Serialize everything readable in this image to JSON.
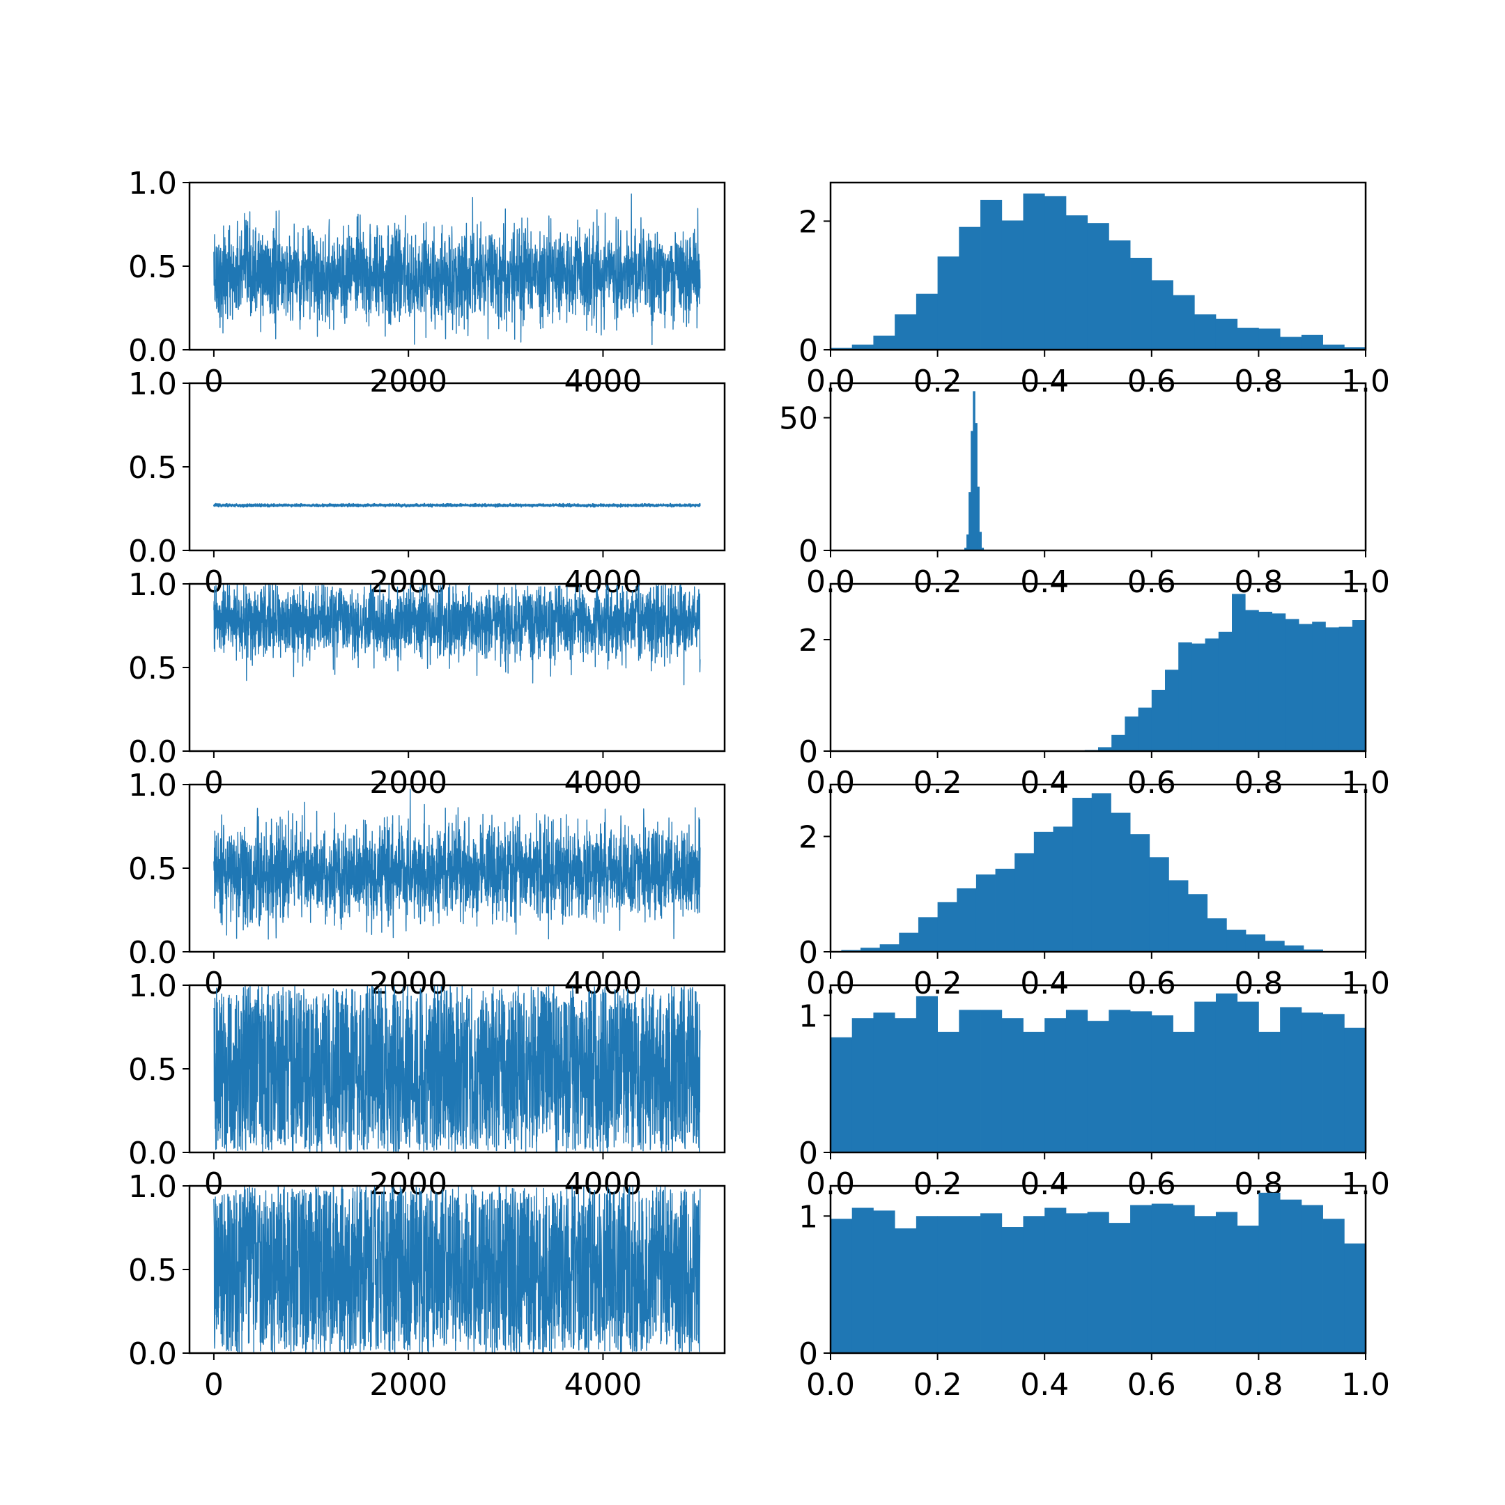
{
  "chart_data": [
    {
      "type": "line",
      "panel": "trace-1",
      "x_range": [
        0,
        5000
      ],
      "xlim": [
        -250,
        5250
      ],
      "ylim": [
        0,
        1
      ],
      "mean": 0.45,
      "spread": 0.14,
      "min": 0.03,
      "max": 1.0,
      "xticks": [
        0,
        2000,
        4000
      ],
      "xtick_labels": [
        "0",
        "2000",
        "4000"
      ],
      "yticks": [
        0,
        0.5,
        1.0
      ],
      "ytick_labels": [
        "0.0",
        "0.5",
        "1.0"
      ],
      "color": "#1f77b4"
    },
    {
      "type": "bar",
      "panel": "hist-1",
      "xlim": [
        0,
        1
      ],
      "ylim": [
        0,
        2.6
      ],
      "bin_width": 0.04,
      "values": [
        0.03,
        0.08,
        0.22,
        0.55,
        0.87,
        1.45,
        1.91,
        2.33,
        2.01,
        2.43,
        2.39,
        2.09,
        1.97,
        1.7,
        1.43,
        1.08,
        0.85,
        0.55,
        0.48,
        0.34,
        0.33,
        0.2,
        0.23,
        0.08,
        0.04
      ],
      "xticks": [
        0,
        0.2,
        0.4,
        0.6,
        0.8,
        1.0
      ],
      "xtick_labels": [
        "0.0",
        "0.2",
        "0.4",
        "0.6",
        "0.8",
        "1.0"
      ],
      "yticks": [
        0,
        2
      ],
      "ytick_labels": [
        "0",
        "2"
      ],
      "color": "#1f77b4"
    },
    {
      "type": "line",
      "panel": "trace-2",
      "x_range": [
        0,
        5000
      ],
      "xlim": [
        -250,
        5250
      ],
      "ylim": [
        0,
        1
      ],
      "mean": 0.27,
      "spread": 0.004,
      "min": 0.26,
      "max": 0.28,
      "xticks": [
        0,
        2000,
        4000
      ],
      "xtick_labels": [
        "0",
        "2000",
        "4000"
      ],
      "yticks": [
        0,
        0.5,
        1.0
      ],
      "ytick_labels": [
        "0.0",
        "0.5",
        "1.0"
      ],
      "color": "#1f77b4"
    },
    {
      "type": "bar",
      "panel": "hist-2",
      "xlim": [
        0,
        1
      ],
      "ylim": [
        0,
        63
      ],
      "x": [
        0.252,
        0.256,
        0.26,
        0.264,
        0.268,
        0.272,
        0.276,
        0.28,
        0.284
      ],
      "values": [
        1,
        6,
        22,
        45,
        60,
        48,
        24,
        7,
        1
      ],
      "xticks": [
        0,
        0.2,
        0.4,
        0.6,
        0.8,
        1.0
      ],
      "xtick_labels": [
        "0.0",
        "0.2",
        "0.4",
        "0.6",
        "0.8",
        "1.0"
      ],
      "yticks": [
        0,
        50
      ],
      "ytick_labels": [
        "0",
        "50"
      ],
      "color": "#1f77b4"
    },
    {
      "type": "line",
      "panel": "trace-3",
      "x_range": [
        0,
        5000
      ],
      "xlim": [
        -250,
        5250
      ],
      "ylim": [
        0,
        1
      ],
      "mean": 0.77,
      "spread": 0.11,
      "min": 0.39,
      "max": 1.0,
      "xticks": [
        0,
        2000,
        4000
      ],
      "xtick_labels": [
        "0",
        "2000",
        "4000"
      ],
      "yticks": [
        0,
        0.5,
        1.0
      ],
      "ytick_labels": [
        "0.0",
        "0.5",
        "1.0"
      ],
      "color": "#1f77b4"
    },
    {
      "type": "bar",
      "panel": "hist-3",
      "xlim": [
        0,
        1
      ],
      "ylim": [
        0,
        3.0
      ],
      "x_start": 0.0,
      "bin_width": 0.025,
      "values": [
        0,
        0,
        0,
        0,
        0,
        0,
        0,
        0,
        0,
        0,
        0,
        0,
        0,
        0,
        0,
        0,
        0,
        0,
        0,
        0.02,
        0.07,
        0.29,
        0.62,
        0.78,
        1.1,
        1.46,
        1.95,
        1.93,
        2.02,
        2.14,
        2.82,
        2.53,
        2.5,
        2.47,
        2.37,
        2.28,
        2.32,
        2.22,
        2.23,
        2.35,
        1.97,
        1.83
      ],
      "xticks": [
        0,
        0.2,
        0.4,
        0.6,
        0.8,
        1.0
      ],
      "xtick_labels": [
        "0.0",
        "0.2",
        "0.4",
        "0.6",
        "0.8",
        "1.0"
      ],
      "yticks": [
        0,
        2
      ],
      "ytick_labels": [
        "0",
        "2"
      ],
      "color": "#1f77b4"
    },
    {
      "type": "line",
      "panel": "trace-4",
      "x_range": [
        0,
        5000
      ],
      "xlim": [
        -250,
        5250
      ],
      "ylim": [
        0,
        1
      ],
      "mean": 0.47,
      "spread": 0.14,
      "min": 0.07,
      "max": 0.98,
      "xticks": [
        0,
        2000,
        4000
      ],
      "xtick_labels": [
        "0",
        "2000",
        "4000"
      ],
      "yticks": [
        0,
        0.5,
        1.0
      ],
      "ytick_labels": [
        "0.0",
        "0.5",
        "1.0"
      ],
      "color": "#1f77b4"
    },
    {
      "type": "bar",
      "panel": "hist-4",
      "xlim": [
        0,
        1
      ],
      "ylim": [
        0,
        2.9
      ],
      "x_start": 0.02,
      "bin_width": 0.036,
      "values": [
        0.03,
        0.07,
        0.13,
        0.33,
        0.6,
        0.86,
        1.1,
        1.34,
        1.44,
        1.71,
        2.08,
        2.17,
        2.67,
        2.75,
        2.41,
        2.04,
        1.64,
        1.24,
        1.0,
        0.58,
        0.38,
        0.3,
        0.19,
        0.11,
        0.04
      ],
      "xticks": [
        0,
        0.2,
        0.4,
        0.6,
        0.8,
        1.0
      ],
      "xtick_labels": [
        "0.0",
        "0.2",
        "0.4",
        "0.6",
        "0.8",
        "1.0"
      ],
      "yticks": [
        0,
        2
      ],
      "ytick_labels": [
        "0",
        "2"
      ],
      "color": "#1f77b4"
    },
    {
      "type": "line",
      "panel": "trace-5",
      "x_range": [
        0,
        5000
      ],
      "xlim": [
        -250,
        5250
      ],
      "ylim": [
        0,
        1
      ],
      "distribution": "uniform",
      "min": 0.0,
      "max": 1.0,
      "xticks": [
        0,
        2000,
        4000
      ],
      "xtick_labels": [
        "0",
        "2000",
        "4000"
      ],
      "yticks": [
        0,
        0.5,
        1.0
      ],
      "ytick_labels": [
        "0.0",
        "0.5",
        "1.0"
      ],
      "color": "#1f77b4"
    },
    {
      "type": "bar",
      "panel": "hist-5",
      "xlim": [
        0,
        1
      ],
      "ylim": [
        0,
        1.22
      ],
      "bin_width": 0.04,
      "values": [
        0.84,
        0.98,
        1.02,
        0.98,
        1.14,
        0.88,
        1.04,
        1.04,
        0.98,
        0.88,
        0.98,
        1.04,
        0.96,
        1.04,
        1.03,
        1.0,
        0.88,
        1.1,
        1.16,
        1.1,
        0.88,
        1.06,
        1.02,
        1.01,
        0.91
      ],
      "xticks": [
        0,
        0.2,
        0.4,
        0.6,
        0.8,
        1.0
      ],
      "xtick_labels": [
        "0.0",
        "0.2",
        "0.4",
        "0.6",
        "0.8",
        "1.0"
      ],
      "yticks": [
        0,
        1
      ],
      "ytick_labels": [
        "0",
        "1"
      ],
      "color": "#1f77b4"
    },
    {
      "type": "line",
      "panel": "trace-6",
      "x_range": [
        0,
        5000
      ],
      "xlim": [
        -250,
        5250
      ],
      "ylim": [
        0,
        1
      ],
      "distribution": "uniform",
      "min": 0.0,
      "max": 1.0,
      "xticks": [
        0,
        2000,
        4000
      ],
      "xtick_labels": [
        "0",
        "2000",
        "4000"
      ],
      "yticks": [
        0,
        0.5,
        1.0
      ],
      "ytick_labels": [
        "0.0",
        "0.5",
        "1.0"
      ],
      "color": "#1f77b4"
    },
    {
      "type": "bar",
      "panel": "hist-6",
      "xlim": [
        0,
        1
      ],
      "ylim": [
        0,
        1.22
      ],
      "bin_width": 0.04,
      "values": [
        0.98,
        1.06,
        1.04,
        0.91,
        1.0,
        1.0,
        1.0,
        1.02,
        0.92,
        1.0,
        1.06,
        1.02,
        1.03,
        0.95,
        1.08,
        1.09,
        1.08,
        1.0,
        1.03,
        0.93,
        1.17,
        1.12,
        1.08,
        0.98,
        0.8
      ],
      "xticks": [
        0,
        0.2,
        0.4,
        0.6,
        0.8,
        1.0
      ],
      "xtick_labels": [
        "0.0",
        "0.2",
        "0.4",
        "0.6",
        "0.8",
        "1.0"
      ],
      "yticks": [
        0,
        1
      ],
      "ytick_labels": [
        "0",
        "1"
      ],
      "color": "#1f77b4"
    }
  ]
}
